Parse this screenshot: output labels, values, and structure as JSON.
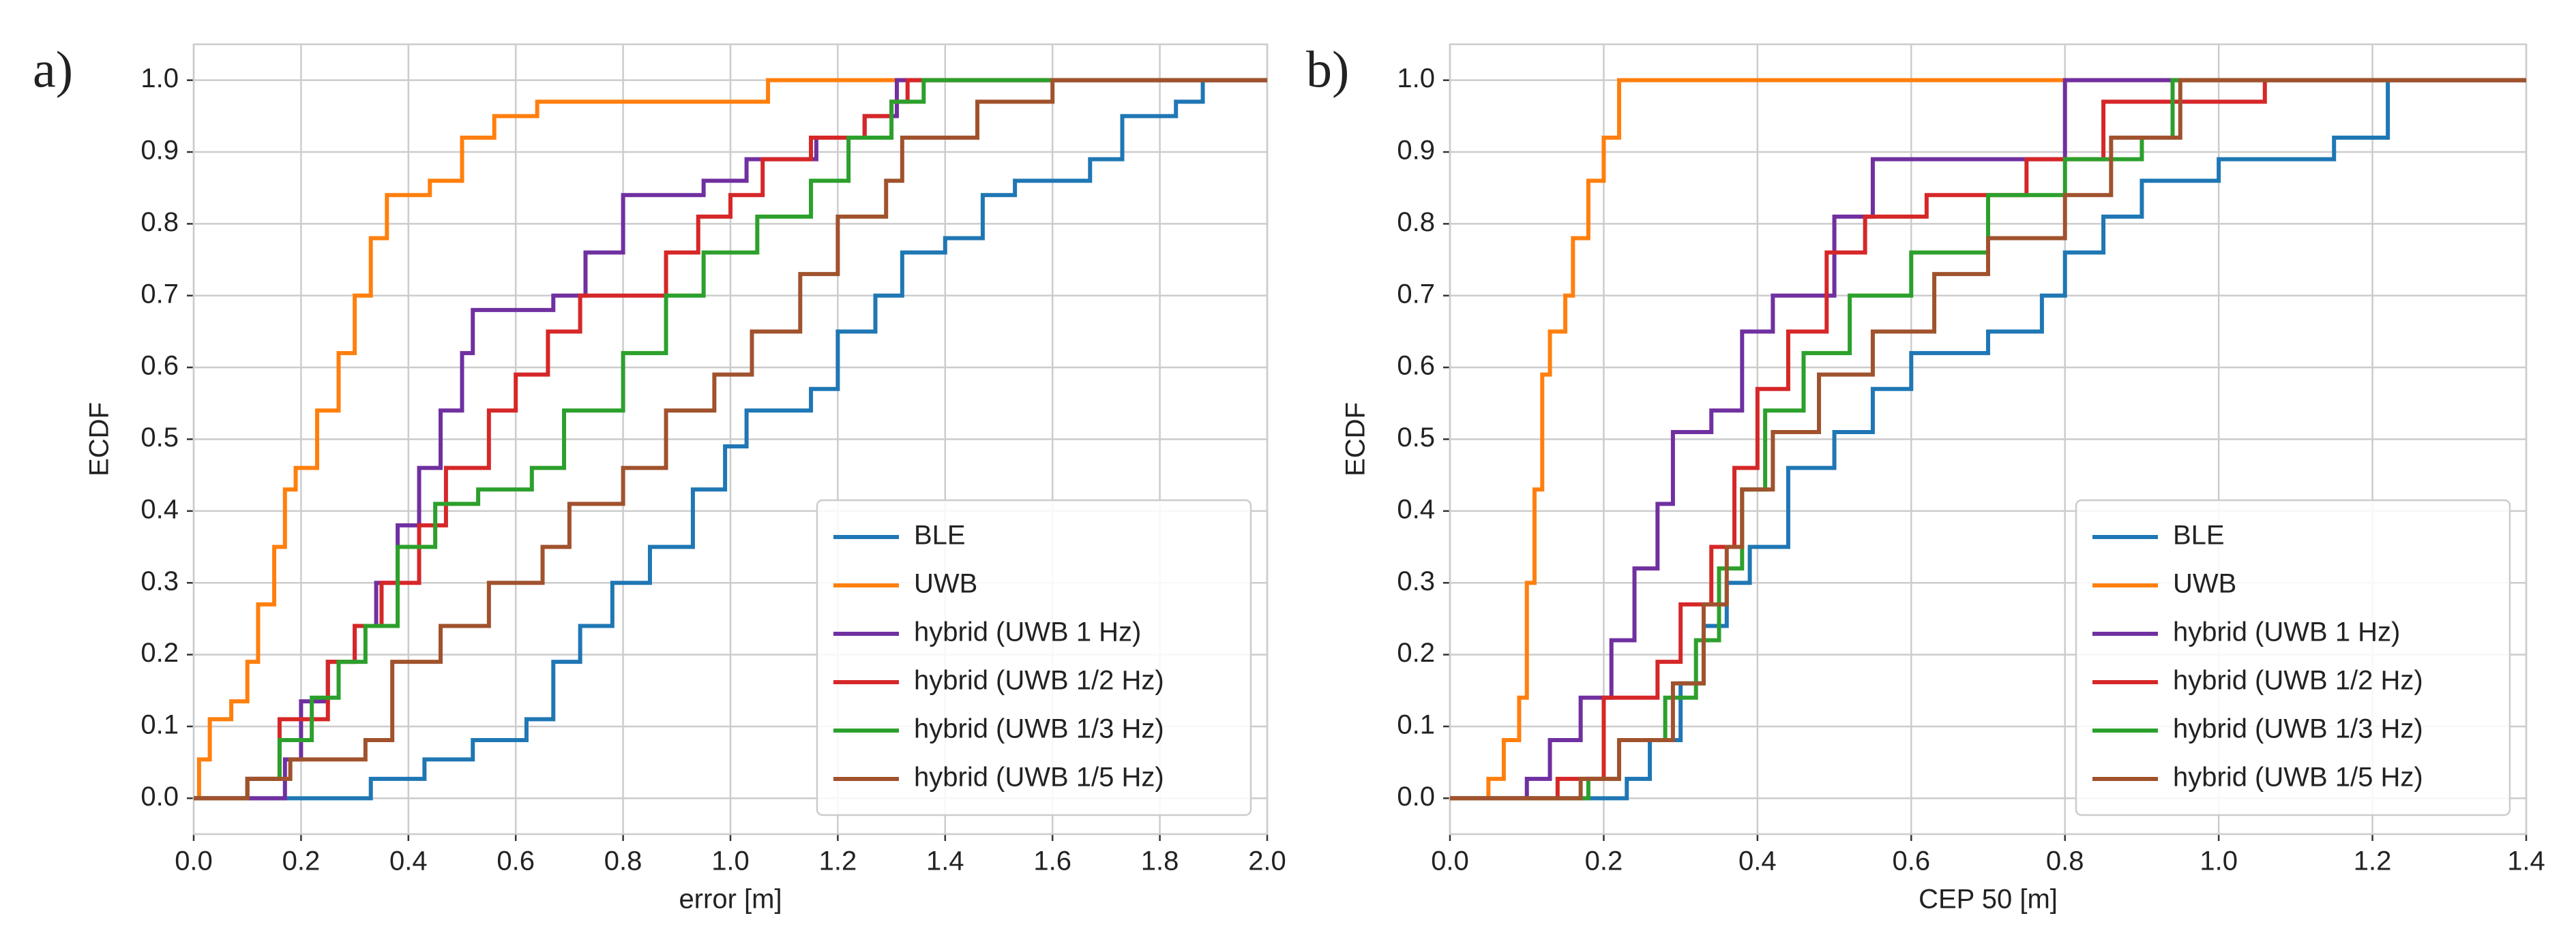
{
  "chart_data": [
    {
      "type": "line",
      "step": "post",
      "panel_label": "a)",
      "xlabel": "error [m]",
      "ylabel": "ECDF",
      "xlim": [
        0,
        2
      ],
      "ylim": [
        -0.05,
        1.05
      ],
      "xticks": [
        {
          "value": 0,
          "label": "0.0"
        },
        0.2,
        0.4,
        0.6,
        0.8,
        {
          "value": 1,
          "label": "1.0"
        },
        1.2,
        1.4,
        1.6,
        1.8,
        {
          "value": 2,
          "label": "2.0"
        }
      ],
      "yticks": [
        {
          "value": 0,
          "label": "0.0"
        },
        0.1,
        0.2,
        0.3,
        0.4,
        0.5,
        0.6,
        0.7,
        0.8,
        0.9,
        {
          "value": 1,
          "label": "1.0"
        }
      ],
      "grid": true,
      "legend": "lower right",
      "series": [
        {
          "name": "BLE",
          "color": "#1f77b4",
          "x": [
            0,
            0.33,
            0.43,
            0.52,
            0.62,
            0.67,
            0.72,
            0.78,
            0.85,
            0.93,
            0.99,
            1.03,
            1.15,
            1.2,
            1.27,
            1.32,
            1.4,
            1.47,
            1.53,
            1.67,
            1.73,
            1.83,
            1.88,
            2.0
          ],
          "values": [
            0,
            0.027,
            0.054,
            0.081,
            0.11,
            0.19,
            0.24,
            0.3,
            0.35,
            0.43,
            0.49,
            0.54,
            0.57,
            0.65,
            0.7,
            0.76,
            0.78,
            0.84,
            0.86,
            0.89,
            0.95,
            0.97,
            1.0,
            1.0
          ]
        },
        {
          "name": "UWB",
          "color": "#ff7f0e",
          "x": [
            0,
            0.01,
            0.03,
            0.07,
            0.1,
            0.12,
            0.15,
            0.17,
            0.19,
            0.23,
            0.27,
            0.3,
            0.33,
            0.36,
            0.44,
            0.5,
            0.56,
            0.64,
            1.07,
            2.0
          ],
          "values": [
            0,
            0.054,
            0.11,
            0.135,
            0.19,
            0.27,
            0.35,
            0.43,
            0.46,
            0.54,
            0.62,
            0.7,
            0.78,
            0.84,
            0.86,
            0.92,
            0.95,
            0.97,
            1.0,
            1.0
          ]
        },
        {
          "name": "hybrid (UWB 1 Hz)",
          "color": "#7030a0",
          "x": [
            0,
            0.17,
            0.2,
            0.25,
            0.3,
            0.34,
            0.38,
            0.42,
            0.46,
            0.5,
            0.52,
            0.67,
            0.73,
            0.8,
            0.95,
            1.03,
            1.16,
            1.25,
            1.31,
            2.0
          ],
          "values": [
            0,
            0.054,
            0.135,
            0.19,
            0.24,
            0.3,
            0.38,
            0.46,
            0.54,
            0.62,
            0.68,
            0.7,
            0.76,
            0.84,
            0.86,
            0.89,
            0.92,
            0.95,
            1.0,
            1.0
          ]
        },
        {
          "name": "hybrid (UWB 1/2 Hz)",
          "color": "#d62728",
          "x": [
            0,
            0.1,
            0.16,
            0.25,
            0.3,
            0.35,
            0.42,
            0.47,
            0.55,
            0.6,
            0.66,
            0.72,
            0.88,
            0.94,
            1.0,
            1.06,
            1.15,
            1.25,
            1.3,
            1.33,
            2.0
          ],
          "values": [
            0,
            0.027,
            0.11,
            0.19,
            0.24,
            0.3,
            0.38,
            0.46,
            0.54,
            0.59,
            0.65,
            0.7,
            0.76,
            0.81,
            0.84,
            0.89,
            0.92,
            0.95,
            0.97,
            1.0,
            1.0
          ]
        },
        {
          "name": "hybrid (UWB 1/3 Hz)",
          "color": "#2ca02c",
          "x": [
            0,
            0.1,
            0.16,
            0.22,
            0.27,
            0.32,
            0.38,
            0.45,
            0.53,
            0.63,
            0.69,
            0.8,
            0.88,
            0.95,
            1.05,
            1.15,
            1.22,
            1.3,
            1.36,
            2.0
          ],
          "values": [
            0,
            0.027,
            0.081,
            0.14,
            0.19,
            0.24,
            0.35,
            0.41,
            0.43,
            0.46,
            0.54,
            0.62,
            0.7,
            0.76,
            0.81,
            0.86,
            0.92,
            0.97,
            1.0,
            1.0
          ]
        },
        {
          "name": "hybrid (UWB 1/5 Hz)",
          "color": "#a0522d",
          "x": [
            0,
            0.1,
            0.18,
            0.32,
            0.37,
            0.46,
            0.55,
            0.65,
            0.7,
            0.8,
            0.88,
            0.97,
            1.04,
            1.13,
            1.2,
            1.29,
            1.32,
            1.46,
            1.6,
            2.0
          ],
          "values": [
            0,
            0.027,
            0.054,
            0.081,
            0.19,
            0.24,
            0.3,
            0.35,
            0.41,
            0.46,
            0.54,
            0.59,
            0.65,
            0.73,
            0.81,
            0.86,
            0.92,
            0.97,
            1.0,
            1.0
          ]
        }
      ]
    },
    {
      "type": "line",
      "step": "post",
      "panel_label": "b)",
      "xlabel": "CEP 50 [m]",
      "ylabel": "ECDF",
      "xlim": [
        0,
        1.4
      ],
      "ylim": [
        -0.05,
        1.05
      ],
      "xticks": [
        {
          "value": 0,
          "label": "0.0"
        },
        0.2,
        0.4,
        0.6,
        0.8,
        {
          "value": 1,
          "label": "1.0"
        },
        1.2,
        1.4
      ],
      "yticks": [
        {
          "value": 0,
          "label": "0.0"
        },
        0.1,
        0.2,
        0.3,
        0.4,
        0.5,
        0.6,
        0.7,
        0.8,
        0.9,
        {
          "value": 1,
          "label": "1.0"
        }
      ],
      "grid": true,
      "legend": "lower right",
      "series": [
        {
          "name": "BLE",
          "color": "#1f77b4",
          "x": [
            0,
            0.23,
            0.26,
            0.3,
            0.33,
            0.36,
            0.39,
            0.44,
            0.5,
            0.55,
            0.6,
            0.7,
            0.77,
            0.8,
            0.85,
            0.9,
            1.0,
            1.15,
            1.22,
            1.4
          ],
          "values": [
            0,
            0.027,
            0.081,
            0.16,
            0.24,
            0.3,
            0.35,
            0.46,
            0.51,
            0.57,
            0.62,
            0.65,
            0.7,
            0.76,
            0.81,
            0.86,
            0.89,
            0.92,
            1.0,
            1.0
          ]
        },
        {
          "name": "UWB",
          "color": "#ff7f0e",
          "x": [
            0,
            0.05,
            0.07,
            0.09,
            0.1,
            0.11,
            0.12,
            0.13,
            0.15,
            0.16,
            0.18,
            0.2,
            0.22,
            1.4
          ],
          "values": [
            0,
            0.027,
            0.081,
            0.14,
            0.3,
            0.43,
            0.59,
            0.65,
            0.7,
            0.78,
            0.86,
            0.92,
            1.0,
            1.0
          ]
        },
        {
          "name": "hybrid (UWB 1 Hz)",
          "color": "#7030a0",
          "x": [
            0,
            0.1,
            0.13,
            0.17,
            0.21,
            0.24,
            0.27,
            0.29,
            0.34,
            0.38,
            0.42,
            0.5,
            0.55,
            0.8,
            1.4
          ],
          "values": [
            0,
            0.027,
            0.081,
            0.14,
            0.22,
            0.32,
            0.41,
            0.51,
            0.54,
            0.65,
            0.7,
            0.81,
            0.89,
            1.0,
            1.0
          ]
        },
        {
          "name": "hybrid (UWB 1/2 Hz)",
          "color": "#d62728",
          "x": [
            0,
            0.14,
            0.2,
            0.27,
            0.3,
            0.34,
            0.37,
            0.4,
            0.44,
            0.49,
            0.54,
            0.62,
            0.75,
            0.85,
            1.06,
            1.4
          ],
          "values": [
            0,
            0.027,
            0.14,
            0.19,
            0.27,
            0.35,
            0.46,
            0.57,
            0.65,
            0.76,
            0.81,
            0.84,
            0.89,
            0.97,
            1.0,
            1.0
          ]
        },
        {
          "name": "hybrid (UWB 1/3 Hz)",
          "color": "#2ca02c",
          "x": [
            0,
            0.18,
            0.22,
            0.28,
            0.32,
            0.35,
            0.38,
            0.41,
            0.46,
            0.52,
            0.6,
            0.7,
            0.8,
            0.9,
            0.94,
            1.4
          ],
          "values": [
            0,
            0.027,
            0.081,
            0.14,
            0.22,
            0.32,
            0.43,
            0.54,
            0.62,
            0.7,
            0.76,
            0.84,
            0.89,
            0.92,
            1.0,
            1.0
          ]
        },
        {
          "name": "hybrid (UWB 1/5 Hz)",
          "color": "#a0522d",
          "x": [
            0,
            0.17,
            0.22,
            0.29,
            0.33,
            0.36,
            0.38,
            0.42,
            0.48,
            0.55,
            0.63,
            0.7,
            0.8,
            0.86,
            0.95,
            1.4
          ],
          "values": [
            0,
            0.027,
            0.081,
            0.16,
            0.27,
            0.35,
            0.43,
            0.51,
            0.59,
            0.65,
            0.73,
            0.78,
            0.84,
            0.92,
            1.0,
            1.0
          ]
        }
      ]
    }
  ]
}
